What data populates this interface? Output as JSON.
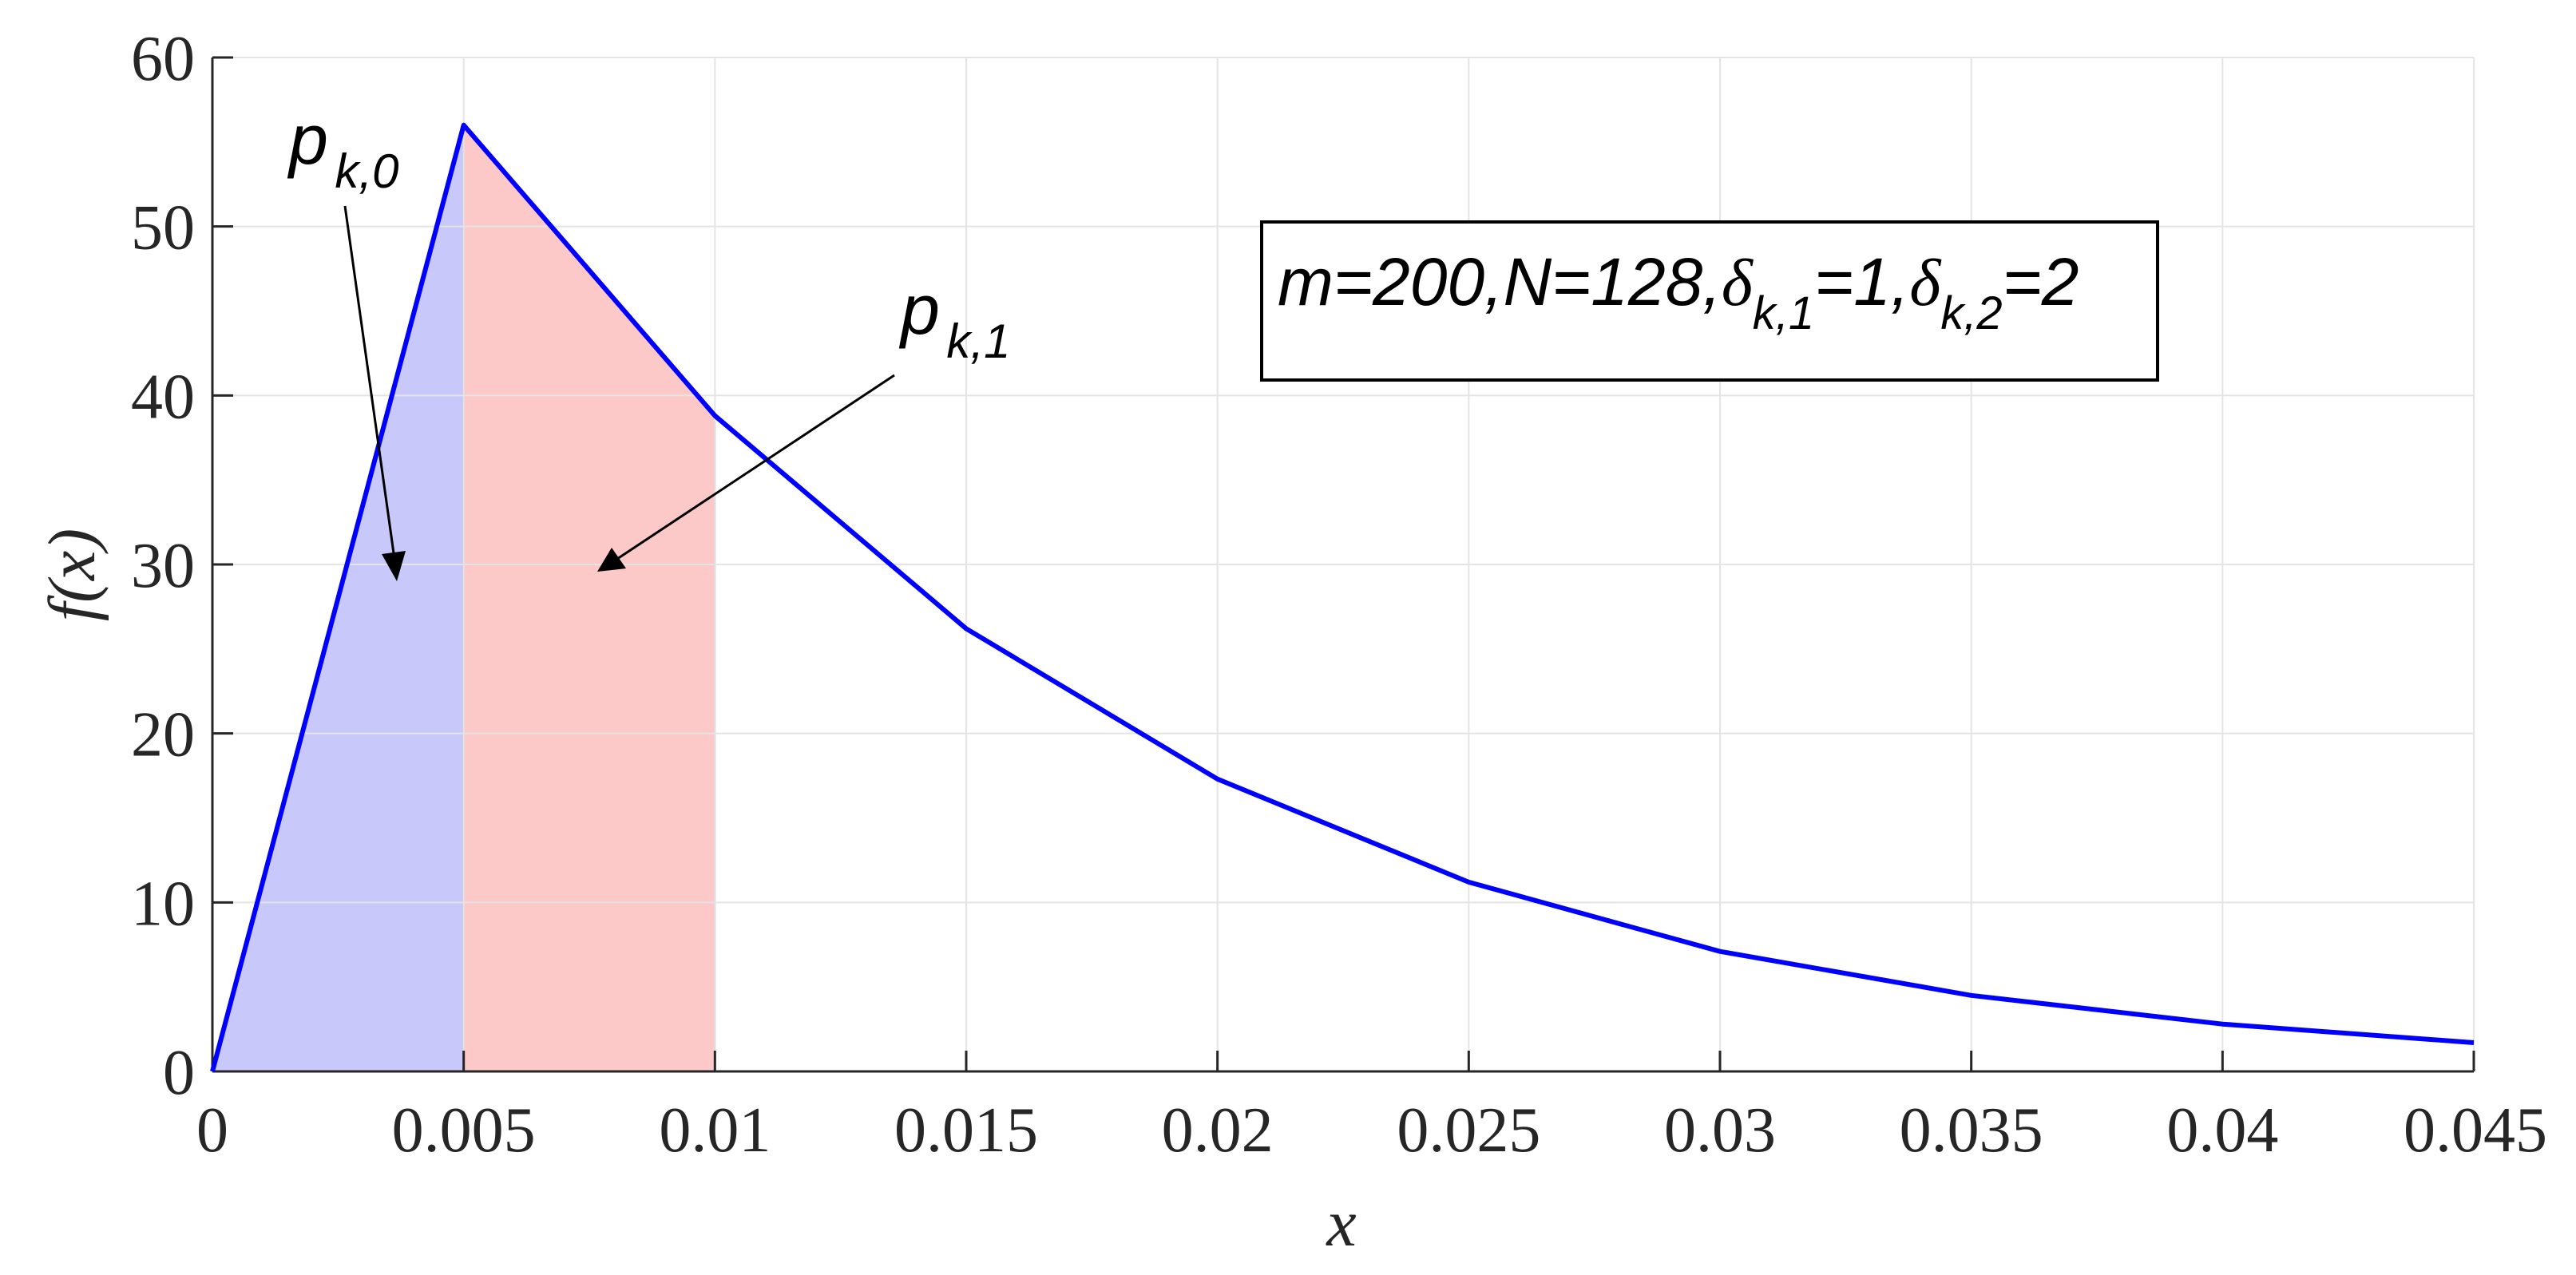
{
  "chart_data": {
    "type": "line",
    "xlabel": "x",
    "ylabel": "f(x)",
    "xlim": [
      0,
      0.045
    ],
    "ylim": [
      0,
      60
    ],
    "xticks": [
      "0",
      "0.005",
      "0.01",
      "0.015",
      "0.02",
      "0.025",
      "0.03",
      "0.035",
      "0.04",
      "0.045"
    ],
    "yticks": [
      "0",
      "10",
      "20",
      "30",
      "40",
      "50",
      "60"
    ],
    "grid": true,
    "series": [
      {
        "color": "#0000ff",
        "x": [
          0,
          0.005,
          0.01,
          0.015,
          0.02,
          0.025,
          0.03,
          0.035,
          0.04,
          0.045
        ],
        "y": [
          0,
          56,
          38.8,
          26.2,
          17.3,
          11.2,
          7.1,
          4.5,
          2.8,
          1.7
        ]
      }
    ],
    "shaded_regions": [
      {
        "label": "p",
        "label_sub": "k,0",
        "x_from": 0,
        "x_to": 0.005,
        "color": "#c8c8fa"
      },
      {
        "label": "p",
        "label_sub": "k,1",
        "x_from": 0.005,
        "x_to": 0.01,
        "color": "#fdc8c8"
      }
    ],
    "annotation_box": {
      "parts": [
        {
          "text": "m=200,N=128,",
          "sub": false
        },
        {
          "text": "δ",
          "sub": false
        },
        {
          "text": "k,1",
          "sub": true
        },
        {
          "text": "=1,",
          "sub": false
        },
        {
          "text": "δ",
          "sub": false
        },
        {
          "text": "k,2",
          "sub": true
        },
        {
          "text": "=2",
          "sub": false
        }
      ]
    }
  }
}
